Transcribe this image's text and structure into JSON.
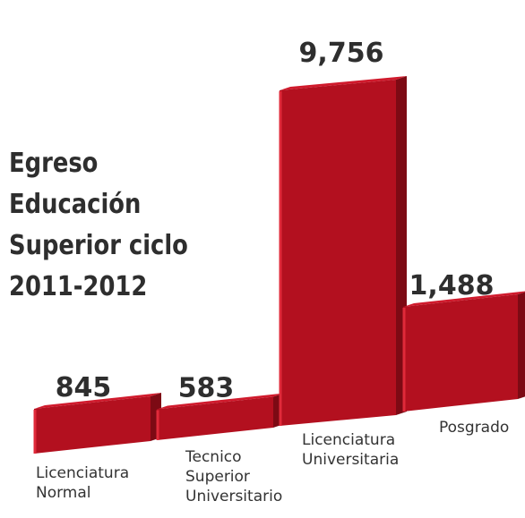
{
  "chart_data": {
    "type": "bar",
    "title": "Egreso Educación\nSuperior ciclo\n2011-2012",
    "categories": [
      [
        "Licenciatura",
        "Normal"
      ],
      [
        "Tecnico",
        "Superior",
        "Universitario"
      ],
      [
        "Licenciatura",
        "Universitaria"
      ],
      [
        "Posgrado"
      ]
    ],
    "values": [
      845,
      583,
      9756,
      1488
    ],
    "value_labels": [
      "845",
      "583",
      "9,756",
      "1,488"
    ],
    "colors": {
      "front": "#b3101f",
      "top": "#d01a2c",
      "side": "#7d0a14",
      "edge": "#e02a3a"
    }
  }
}
